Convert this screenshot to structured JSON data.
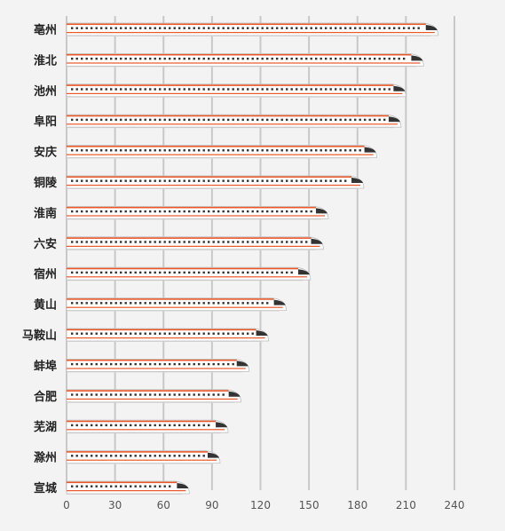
{
  "chart_data": {
    "type": "bar",
    "orientation": "horizontal",
    "categories": [
      "亳州",
      "淮北",
      "池州",
      "阜阳",
      "安庆",
      "铜陵",
      "淮南",
      "六安",
      "宿州",
      "黄山",
      "马鞍山",
      "蚌埠",
      "合肥",
      "芜湖",
      "滁州",
      "宣城"
    ],
    "values": [
      230,
      221,
      210,
      207,
      192,
      184,
      162,
      159,
      151,
      136,
      125,
      113,
      108,
      100,
      95,
      76
    ],
    "xlim": [
      0,
      240
    ],
    "xticks": [
      0,
      30,
      60,
      90,
      120,
      150,
      180,
      210,
      240
    ],
    "grid": true,
    "title": "",
    "xlabel": "",
    "ylabel": "",
    "mark_style": "high-speed-train",
    "colors": {
      "background": "#f3f3f3",
      "grid": "#c8c8c8",
      "train_body": "#ffffff",
      "train_stripe": "#e8582a",
      "train_window": "#333333",
      "train_shade": "#d9d9d9"
    }
  }
}
